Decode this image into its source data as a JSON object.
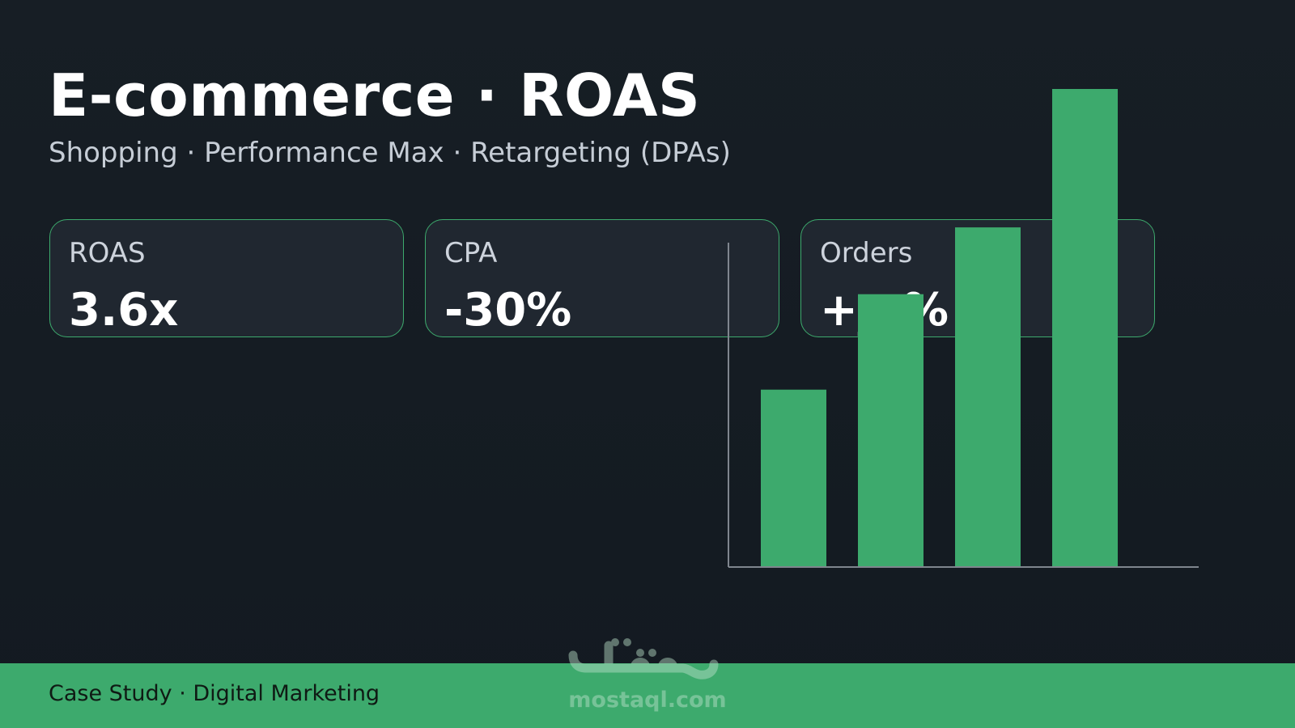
{
  "title": "E-commerce · ROAS",
  "subtitle": "Shopping · Performance Max · Retargeting (DPAs)",
  "kpis": [
    {
      "label": "ROAS",
      "value": "3.6x"
    },
    {
      "label": "CPA",
      "value": "-30%"
    },
    {
      "label": "Orders",
      "value": "+__%"
    }
  ],
  "chart_data": {
    "type": "bar",
    "categories": [
      "",
      "",
      "",
      ""
    ],
    "values": [
      37,
      57,
      71,
      100
    ],
    "ylim": [
      0,
      100
    ],
    "xlabel": "",
    "ylabel": "",
    "grid": false,
    "bar_color": "#3daa6d",
    "axis_color": "#7f858e"
  },
  "footer": {
    "text": "Case Study · Digital Marketing"
  },
  "watermark": {
    "arabic": "مستقل",
    "text": "mostaql.com"
  },
  "colors": {
    "accent": "#3daa6d",
    "background": "#161d24",
    "card_background": "#202730"
  }
}
